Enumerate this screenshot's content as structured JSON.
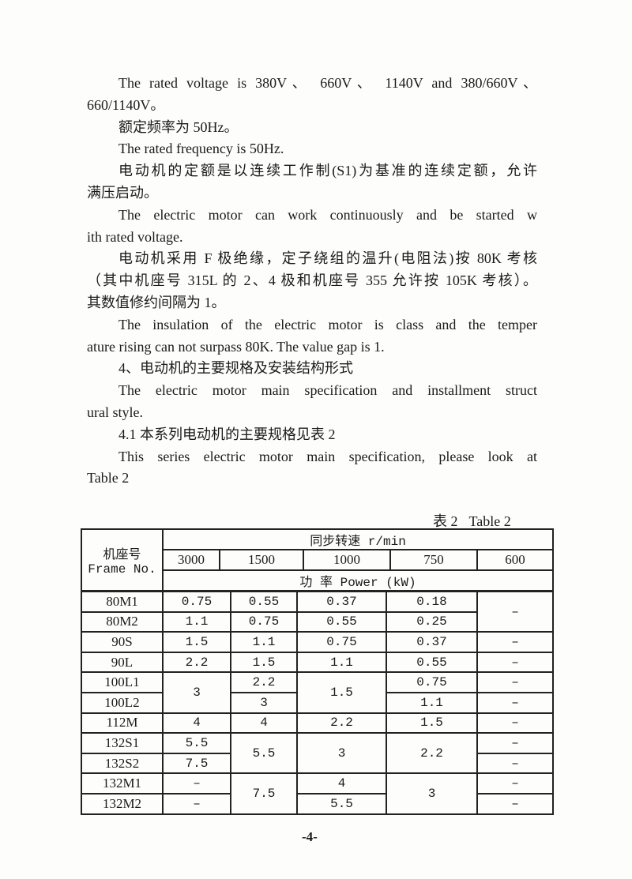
{
  "paragraphs": [
    [
      "The rated voltage is 380V、 660V、 1140V and 380/660V、",
      "660/1140V。"
    ],
    [
      "额定频率为 50Hz。"
    ],
    [
      "The rated frequency is 50Hz."
    ],
    [
      "电动机的定额是以连续工作制(S1)为基准的连续定额，允许",
      "满压启动。"
    ],
    [
      "The electric motor can work continuously and be started w",
      "ith rated voltage."
    ],
    [
      "电动机采用 F 极绝缘，定子绕组的温升(电阻法)按 80K 考核",
      "（其中机座号 315L 的 2、4 极和机座号 355 允许按 105K 考核）。",
      "其数值修约间隔为 1。"
    ],
    [
      "The insulation of the electric motor is class and the temper",
      "ature rising can not surpass 80K. The value gap is 1."
    ],
    [
      "4、电动机的主要规格及安装结构形式"
    ],
    [
      "The electric motor main specification and installment struct",
      "ural style."
    ],
    [
      "4.1  本系列电动机的主要规格见表 2"
    ],
    [
      "This series electric motor main specification, please look at",
      " Table 2"
    ]
  ],
  "table": {
    "caption_cn": "表 2",
    "caption_en": "Table 2",
    "frame_header_cn": "机座号",
    "frame_header_en": "Frame No.",
    "speed_header": "同步转速 r/min",
    "speeds": [
      "3000",
      "1500",
      "1000",
      "750",
      "600"
    ],
    "power_header": "功 率 Power  (kW)",
    "frames": [
      "80M1",
      "80M2",
      "90S",
      "90L",
      "100L1",
      "100L2",
      "112M",
      "132S1",
      "132S2",
      "132M1",
      "132M2"
    ],
    "cells": {
      "c3000": [
        "0.75",
        "1.1",
        "1.5",
        "2.2",
        "3",
        "4",
        "5.5",
        "7.5",
        "–",
        "–"
      ],
      "c1500": [
        "0.55",
        "0.75",
        "1.1",
        "1.5",
        "2.2",
        "3",
        "4",
        "5.5",
        "7.5"
      ],
      "c1000": [
        "0.37",
        "0.55",
        "0.75",
        "1.1",
        "1.5",
        "2.2",
        "3",
        "4",
        "5.5"
      ],
      "c750": [
        "0.18",
        "0.25",
        "0.37",
        "0.55",
        "0.75",
        "1.1",
        "1.5",
        "2.2",
        "3"
      ],
      "c600": [
        "–",
        "–",
        "–",
        "–",
        "–",
        "–",
        "–",
        "–",
        "–",
        "–"
      ]
    }
  },
  "page_number": "-4-"
}
